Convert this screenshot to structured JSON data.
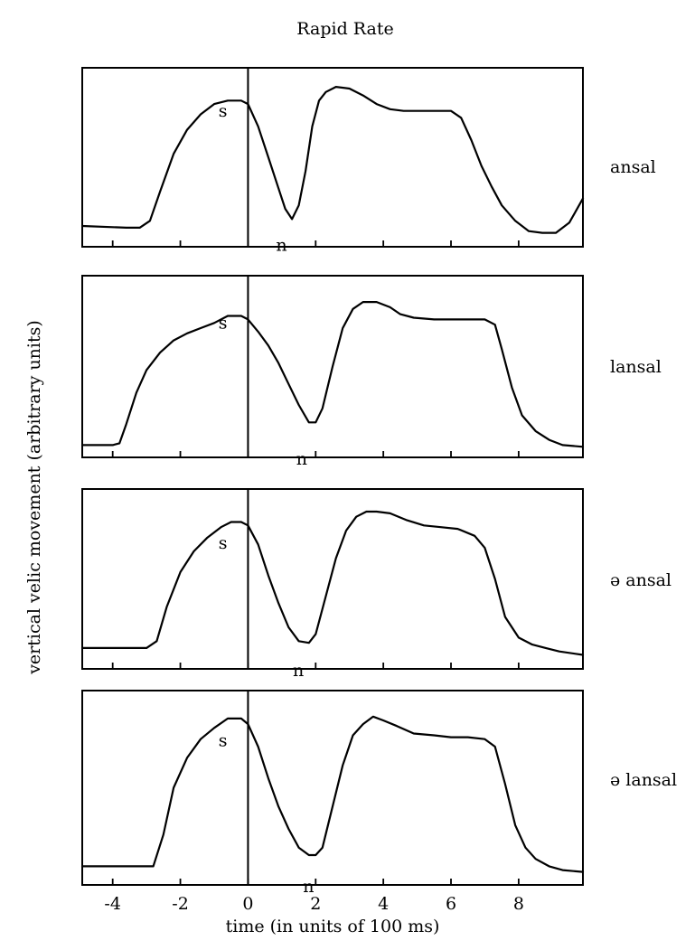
{
  "chart_data": {
    "type": "line",
    "title": "Rapid Rate",
    "xlabel": "time (in units of 100 ms)",
    "ylabel": "vertical velic movement (arbitrary units)",
    "xlim": [
      -4.9,
      9.9
    ],
    "ylim": [
      0,
      1
    ],
    "x_ticks": [
      -4,
      -2,
      0,
      2,
      4,
      6,
      8
    ],
    "x_tick_labels": [
      "-4",
      "-2",
      "0",
      "2",
      "4",
      "6",
      "8"
    ],
    "grid": false,
    "reference_line_x": 0,
    "panels": [
      {
        "label": "ansal",
        "annotations": [
          {
            "text": "s",
            "x": -0.5,
            "y": 0.82
          },
          {
            "text": "n",
            "x": 1.2,
            "y": 0.04
          }
        ],
        "series": [
          {
            "x": [
              -4.9,
              -3.6,
              -3.2,
              -2.9,
              -2.6,
              -2.2,
              -1.8,
              -1.4,
              -1.0,
              -0.6,
              -0.2,
              0.0,
              0.3,
              0.6,
              0.9,
              1.1,
              1.3,
              1.5,
              1.7,
              1.9,
              2.1,
              2.3,
              2.6,
              3.0,
              3.4,
              3.8,
              4.2,
              4.6,
              5.0,
              5.5,
              6.0,
              6.3,
              6.6,
              6.9,
              7.2,
              7.5,
              7.9,
              8.3,
              8.7,
              9.1,
              9.5,
              9.9
            ],
            "y": [
              0.1,
              0.09,
              0.09,
              0.13,
              0.3,
              0.52,
              0.66,
              0.75,
              0.81,
              0.83,
              0.83,
              0.81,
              0.68,
              0.5,
              0.32,
              0.2,
              0.14,
              0.22,
              0.42,
              0.68,
              0.83,
              0.88,
              0.91,
              0.9,
              0.86,
              0.81,
              0.78,
              0.77,
              0.77,
              0.77,
              0.77,
              0.73,
              0.6,
              0.45,
              0.33,
              0.22,
              0.13,
              0.07,
              0.06,
              0.06,
              0.12,
              0.26
            ]
          }
        ]
      },
      {
        "label": "lansal",
        "annotations": [
          {
            "text": "s",
            "x": -0.5,
            "y": 0.8
          },
          {
            "text": "n",
            "x": 1.8,
            "y": 0.02
          }
        ],
        "series": [
          {
            "x": [
              -4.9,
              -4.0,
              -3.8,
              -3.6,
              -3.3,
              -3.0,
              -2.6,
              -2.2,
              -1.8,
              -1.4,
              -1.0,
              -0.6,
              -0.2,
              0.0,
              0.3,
              0.6,
              0.9,
              1.2,
              1.5,
              1.8,
              2.0,
              2.2,
              2.5,
              2.8,
              3.1,
              3.4,
              3.8,
              4.2,
              4.5,
              4.9,
              5.5,
              6.0,
              6.5,
              7.0,
              7.3,
              7.5,
              7.8,
              8.1,
              8.5,
              8.9,
              9.3,
              9.9
            ],
            "y": [
              0.05,
              0.05,
              0.06,
              0.17,
              0.35,
              0.48,
              0.58,
              0.65,
              0.69,
              0.72,
              0.75,
              0.79,
              0.79,
              0.77,
              0.7,
              0.62,
              0.52,
              0.4,
              0.28,
              0.18,
              0.18,
              0.26,
              0.5,
              0.72,
              0.83,
              0.87,
              0.87,
              0.84,
              0.8,
              0.78,
              0.77,
              0.77,
              0.77,
              0.77,
              0.74,
              0.6,
              0.38,
              0.22,
              0.13,
              0.08,
              0.05,
              0.04
            ]
          }
        ]
      },
      {
        "label": "ə ansal",
        "annotations": [
          {
            "text": "s",
            "x": -0.5,
            "y": 0.76
          },
          {
            "text": "n",
            "x": 1.7,
            "y": 0.02
          }
        ],
        "series": [
          {
            "x": [
              -4.9,
              -3.0,
              -2.7,
              -2.4,
              -2.0,
              -1.6,
              -1.2,
              -0.8,
              -0.5,
              -0.2,
              0.0,
              0.3,
              0.6,
              0.9,
              1.2,
              1.5,
              1.8,
              2.0,
              2.3,
              2.6,
              2.9,
              3.2,
              3.5,
              3.8,
              4.2,
              4.7,
              5.2,
              5.7,
              6.2,
              6.7,
              7.0,
              7.3,
              7.6,
              8.0,
              8.4,
              8.8,
              9.2,
              9.9
            ],
            "y": [
              0.1,
              0.1,
              0.14,
              0.34,
              0.54,
              0.66,
              0.74,
              0.8,
              0.83,
              0.83,
              0.81,
              0.7,
              0.52,
              0.36,
              0.22,
              0.14,
              0.13,
              0.18,
              0.4,
              0.62,
              0.78,
              0.86,
              0.89,
              0.89,
              0.88,
              0.84,
              0.81,
              0.8,
              0.79,
              0.75,
              0.68,
              0.5,
              0.28,
              0.16,
              0.12,
              0.1,
              0.08,
              0.06
            ]
          }
        ]
      },
      {
        "label": "ə  lansal",
        "annotations": [
          {
            "text": "s",
            "x": -0.5,
            "y": 0.8
          },
          {
            "text": "n",
            "x": 2.0,
            "y": 0.02
          }
        ],
        "series": [
          {
            "x": [
              -4.9,
              -2.8,
              -2.5,
              -2.2,
              -1.8,
              -1.4,
              -1.0,
              -0.6,
              -0.2,
              0.0,
              0.3,
              0.6,
              0.9,
              1.2,
              1.5,
              1.8,
              2.0,
              2.2,
              2.5,
              2.8,
              3.1,
              3.4,
              3.7,
              4.0,
              4.4,
              4.9,
              5.5,
              6.0,
              6.5,
              7.0,
              7.3,
              7.6,
              7.9,
              8.2,
              8.5,
              8.9,
              9.3,
              9.9
            ],
            "y": [
              0.08,
              0.08,
              0.25,
              0.5,
              0.66,
              0.76,
              0.82,
              0.87,
              0.87,
              0.84,
              0.72,
              0.55,
              0.4,
              0.28,
              0.18,
              0.14,
              0.14,
              0.18,
              0.4,
              0.62,
              0.78,
              0.84,
              0.88,
              0.86,
              0.83,
              0.79,
              0.78,
              0.77,
              0.77,
              0.76,
              0.72,
              0.52,
              0.3,
              0.18,
              0.12,
              0.08,
              0.06,
              0.05
            ]
          }
        ]
      }
    ]
  }
}
